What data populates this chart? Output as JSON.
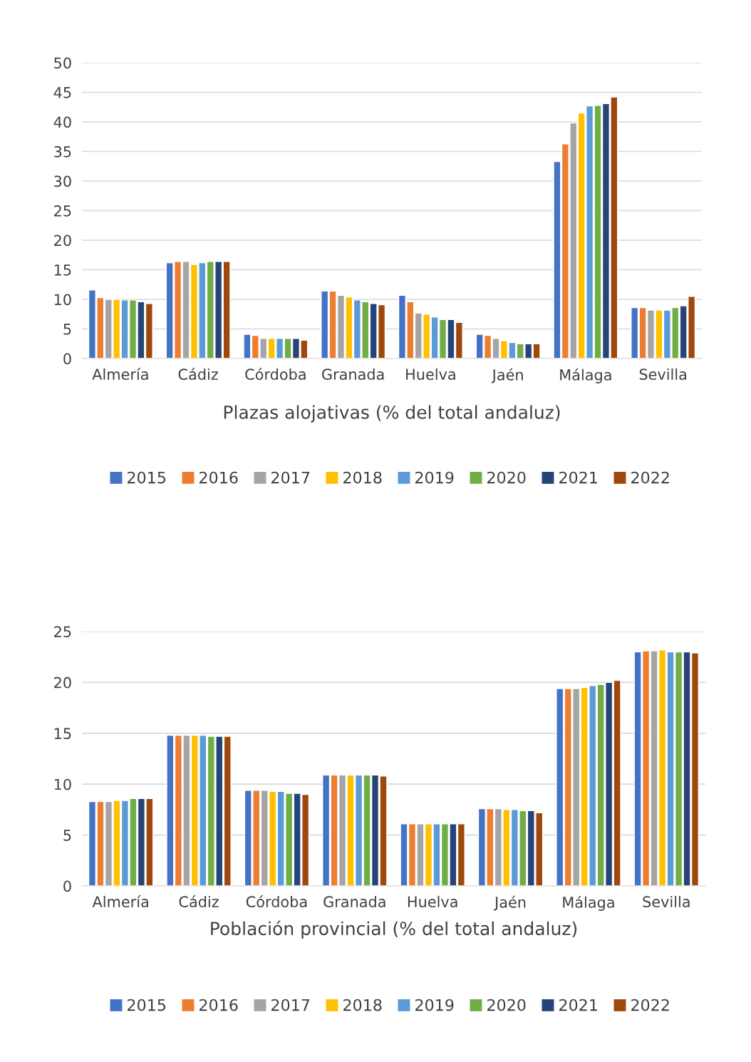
{
  "chart_data": [
    {
      "type": "bar",
      "xlabel": "Plazas alojativas (% del total andaluz)",
      "categories": [
        "Almería",
        "Cádiz",
        "Córdoba",
        "Granada",
        "Huelva",
        "Jaén",
        "Málaga",
        "Sevilla"
      ],
      "ylim": [
        0,
        50
      ],
      "yticks": [
        0,
        5,
        10,
        15,
        20,
        25,
        30,
        35,
        40,
        45,
        50
      ],
      "grid": "y",
      "legend": "bottom",
      "series": [
        {
          "name": "2015",
          "color": "#4472c4",
          "values": [
            11.6,
            16.2,
            4.1,
            11.4,
            10.7,
            4.1,
            33.3,
            8.6
          ]
        },
        {
          "name": "2016",
          "color": "#ed7d31",
          "values": [
            10.3,
            16.4,
            3.9,
            11.4,
            9.6,
            3.9,
            36.3,
            8.6
          ]
        },
        {
          "name": "2017",
          "color": "#a5a5a5",
          "values": [
            10.0,
            16.4,
            3.4,
            10.7,
            7.7,
            3.4,
            39.8,
            8.2
          ]
        },
        {
          "name": "2018",
          "color": "#ffc000",
          "values": [
            10.0,
            15.9,
            3.4,
            10.4,
            7.5,
            3.0,
            41.5,
            8.2
          ]
        },
        {
          "name": "2019",
          "color": "#5b9bd5",
          "values": [
            9.9,
            16.2,
            3.4,
            9.9,
            7.0,
            2.7,
            42.7,
            8.2
          ]
        },
        {
          "name": "2020",
          "color": "#70ad47",
          "values": [
            9.9,
            16.4,
            3.4,
            9.6,
            6.6,
            2.5,
            42.8,
            8.6
          ]
        },
        {
          "name": "2021",
          "color": "#264478",
          "values": [
            9.6,
            16.4,
            3.4,
            9.3,
            6.6,
            2.5,
            43.1,
            8.9
          ]
        },
        {
          "name": "2022",
          "color": "#9e480e",
          "values": [
            9.3,
            16.4,
            3.1,
            9.1,
            6.1,
            2.5,
            44.2,
            10.5
          ]
        }
      ]
    },
    {
      "type": "bar",
      "xlabel": "Población provincial (% del total andaluz)",
      "categories": [
        "Almería",
        "Cádiz",
        "Córdoba",
        "Granada",
        "Huelva",
        "Jaén",
        "Málaga",
        "Sevilla"
      ],
      "ylim": [
        0,
        25
      ],
      "yticks": [
        0,
        5,
        10,
        15,
        20,
        25
      ],
      "grid": "y",
      "legend": "bottom",
      "series": [
        {
          "name": "2015",
          "color": "#4472c4",
          "values": [
            8.3,
            14.8,
            9.4,
            10.9,
            6.1,
            7.6,
            19.4,
            23.0
          ]
        },
        {
          "name": "2016",
          "color": "#ed7d31",
          "values": [
            8.3,
            14.8,
            9.4,
            10.9,
            6.1,
            7.6,
            19.4,
            23.1
          ]
        },
        {
          "name": "2017",
          "color": "#a5a5a5",
          "values": [
            8.3,
            14.8,
            9.4,
            10.9,
            6.1,
            7.6,
            19.4,
            23.1
          ]
        },
        {
          "name": "2018",
          "color": "#ffc000",
          "values": [
            8.4,
            14.8,
            9.3,
            10.9,
            6.1,
            7.5,
            19.5,
            23.2
          ]
        },
        {
          "name": "2019",
          "color": "#5b9bd5",
          "values": [
            8.4,
            14.8,
            9.3,
            10.9,
            6.1,
            7.5,
            19.7,
            23.0
          ]
        },
        {
          "name": "2020",
          "color": "#70ad47",
          "values": [
            8.6,
            14.7,
            9.1,
            10.9,
            6.1,
            7.4,
            19.8,
            23.0
          ]
        },
        {
          "name": "2021",
          "color": "#264478",
          "values": [
            8.6,
            14.7,
            9.1,
            10.9,
            6.1,
            7.4,
            20.0,
            23.0
          ]
        },
        {
          "name": "2022",
          "color": "#9e480e",
          "values": [
            8.6,
            14.7,
            9.0,
            10.8,
            6.1,
            7.2,
            20.2,
            22.9
          ]
        }
      ]
    }
  ]
}
